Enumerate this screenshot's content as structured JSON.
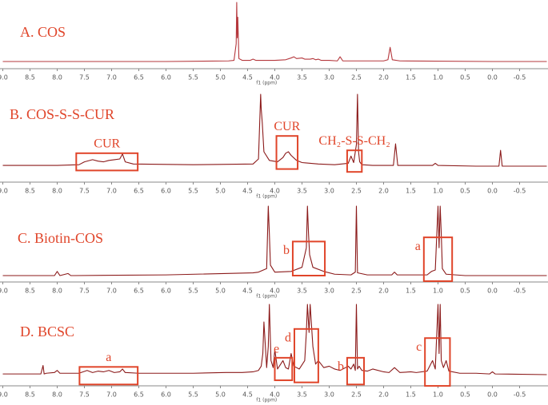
{
  "chart_data": [
    {
      "type": "line",
      "title": "A. COS",
      "xlabel": "f1 (ppm)",
      "color": "#b5383d",
      "xlim": [
        9,
        -1
      ],
      "ylim": [
        0,
        100
      ],
      "xticks": [
        {
          "value": 9,
          "label": "9.0"
        },
        8.5,
        {
          "value": 8,
          "label": "8.0"
        },
        7.5,
        {
          "value": 7,
          "label": "7.0"
        },
        6.5,
        {
          "value": 6,
          "label": "6.0"
        },
        5.5,
        {
          "value": 5,
          "label": "5.0"
        },
        4.5,
        {
          "value": 4,
          "label": "4.0"
        },
        3.5,
        {
          "value": 3,
          "label": "3.0"
        },
        2.5,
        {
          "value": 2,
          "label": "2.0"
        },
        1.5,
        {
          "value": 1,
          "label": "1.0"
        },
        0.5,
        {
          "value": 0,
          "label": "0.0"
        },
        -0.5
      ],
      "x": [
        9,
        8.2,
        6,
        4.85,
        4.75,
        4.71,
        4.7,
        4.69,
        4.68,
        4.66,
        4.6,
        4.45,
        4.4,
        4.35,
        4.0,
        3.8,
        3.7,
        3.65,
        3.6,
        3.5,
        3.45,
        3.35,
        3.3,
        3.25,
        3.2,
        3.15,
        3.0,
        2.85,
        2.8,
        2.75,
        2.0,
        1.92,
        1.88,
        1.84,
        1.7,
        0,
        -1
      ],
      "values": [
        0,
        0,
        0,
        1,
        2,
        30,
        100,
        40,
        75,
        5,
        2,
        2,
        4,
        2,
        2,
        3,
        6,
        8,
        5,
        6,
        4,
        4,
        5,
        3,
        4,
        2,
        2,
        1,
        8,
        1,
        1,
        3,
        24,
        3,
        1,
        0,
        0
      ],
      "annotations": []
    },
    {
      "type": "line",
      "title": "B. COS-S-S-CUR",
      "xlabel": "f1 (ppm)",
      "color": "#8b1a1a",
      "xlim": [
        9,
        -1
      ],
      "ylim": [
        0,
        100
      ],
      "xticks": [
        {
          "value": 9,
          "label": "9.0"
        },
        8.5,
        {
          "value": 8,
          "label": "8.0"
        },
        7.5,
        {
          "value": 7,
          "label": "7.0"
        },
        6.5,
        {
          "value": 6,
          "label": "6.0"
        },
        5.5,
        {
          "value": 5,
          "label": "5.0"
        },
        4.5,
        {
          "value": 4,
          "label": "4.0"
        },
        3.5,
        {
          "value": 3,
          "label": "3.0"
        },
        2.5,
        {
          "value": 2,
          "label": "2.0"
        },
        1.5,
        {
          "value": 1,
          "label": "1.0"
        },
        0.5,
        {
          "value": 0,
          "label": "0.0"
        },
        -0.5
      ],
      "x": [
        9,
        8.0,
        7.6,
        7.5,
        7.35,
        7.25,
        7.15,
        7.05,
        6.95,
        6.85,
        6.8,
        6.75,
        6.6,
        5.5,
        4.4,
        4.3,
        4.26,
        4.25,
        4.23,
        4.2,
        4.1,
        3.95,
        3.85,
        3.8,
        3.75,
        3.7,
        3.6,
        3.5,
        3.2,
        2.9,
        2.65,
        2.6,
        2.55,
        2.5,
        2.48,
        2.46,
        2.44,
        2.4,
        2.2,
        1.82,
        1.78,
        1.74,
        1.1,
        1.05,
        1.0,
        0.3,
        -0.12,
        -0.15,
        -0.18,
        -1
      ],
      "values": [
        1,
        1,
        2,
        6,
        9,
        7,
        6,
        8,
        9,
        10,
        17,
        6,
        3,
        2,
        3,
        10,
        100,
        80,
        60,
        20,
        8,
        6,
        12,
        18,
        20,
        15,
        8,
        5,
        3,
        2,
        4,
        14,
        5,
        30,
        100,
        20,
        6,
        2,
        1,
        1,
        31,
        1,
        1,
        4,
        1,
        0,
        0,
        22,
        0,
        0
      ],
      "annotations": [
        {
          "label": "CUR",
          "x": [
            7.65,
            6.52
          ],
          "y": [
            -6,
            18
          ]
        },
        {
          "label": "CUR",
          "x": [
            3.97,
            3.58
          ],
          "y": [
            -4,
            42
          ]
        },
        {
          "label": "CH₂-S-S-CH₂",
          "x": [
            2.67,
            2.4
          ],
          "y": [
            -8,
            22
          ]
        }
      ]
    },
    {
      "type": "line",
      "title": "C. Biotin-COS",
      "xlabel": "f1 (ppm)",
      "color": "#8b1a1a",
      "xlim": [
        9,
        -1
      ],
      "ylim": [
        0,
        100
      ],
      "xticks": [
        {
          "value": 9,
          "label": "9.0"
        },
        8.5,
        {
          "value": 8,
          "label": "8.0"
        },
        7.5,
        {
          "value": 7,
          "label": "7.0"
        },
        6.5,
        {
          "value": 6,
          "label": "6.0"
        },
        5.5,
        {
          "value": 5,
          "label": "5.0"
        },
        4.5,
        {
          "value": 4,
          "label": "4.0"
        },
        3.5,
        {
          "value": 3,
          "label": "3.0"
        },
        2.5,
        {
          "value": 2,
          "label": "2.0"
        },
        1.5,
        {
          "value": 1,
          "label": "1.0"
        },
        0.5,
        {
          "value": 0,
          "label": "0.0"
        },
        -0.5
      ],
      "x": [
        9,
        8.05,
        8.0,
        7.95,
        7.8,
        7.75,
        7.7,
        6,
        4.4,
        4.3,
        4.15,
        4.12,
        4.1,
        4.08,
        4.0,
        3.7,
        3.5,
        3.42,
        3.4,
        3.38,
        3.36,
        3.3,
        3.1,
        2.9,
        2.6,
        2.52,
        2.5,
        2.48,
        2.3,
        1.85,
        1.8,
        1.75,
        1.2,
        1.12,
        1.05,
        1.0,
        0.98,
        0.96,
        0.94,
        0.92,
        0.85,
        0.5,
        -1
      ],
      "values": [
        0,
        0,
        6,
        0,
        3,
        0,
        0,
        1,
        4,
        5,
        10,
        100,
        60,
        15,
        5,
        6,
        12,
        40,
        100,
        60,
        30,
        12,
        6,
        2,
        1,
        5,
        100,
        4,
        1,
        1,
        5,
        1,
        1,
        6,
        8,
        100,
        40,
        100,
        60,
        10,
        2,
        0,
        0
      ],
      "annotations": [
        {
          "label": "b",
          "x": [
            3.67,
            3.08
          ],
          "y": [
            0,
            49
          ]
        },
        {
          "label": "a",
          "x": [
            1.26,
            0.74
          ],
          "y": [
            -8,
            55
          ]
        }
      ]
    },
    {
      "type": "line",
      "title": "D. BCSC",
      "xlabel": "f1 (ppm)",
      "color": "#8b1a1a",
      "xlim": [
        9,
        -1
      ],
      "ylim": [
        0,
        100
      ],
      "xticks": [
        {
          "value": 9,
          "label": "9.0"
        },
        8.5,
        {
          "value": 8,
          "label": "8.0"
        },
        7.5,
        {
          "value": 7,
          "label": "7.0"
        },
        6.5,
        {
          "value": 6,
          "label": "6.0"
        },
        5.5,
        {
          "value": 5,
          "label": "5.0"
        },
        4.5,
        {
          "value": 4,
          "label": "4.0"
        },
        3.5,
        {
          "value": 3,
          "label": "3.0"
        },
        2.5,
        {
          "value": 2,
          "label": "2.0"
        },
        1.5,
        {
          "value": 1,
          "label": "1.0"
        },
        0.5,
        {
          "value": 0,
          "label": "0.0"
        },
        -0.5
      ],
      "x": [
        9,
        8.3,
        8.26,
        8.24,
        8.2,
        8.05,
        8.0,
        7.95,
        7.6,
        7.45,
        7.35,
        7.25,
        7.15,
        7.05,
        6.95,
        6.85,
        6.8,
        6.75,
        6.5,
        5.5,
        4.9,
        4.6,
        4.4,
        4.3,
        4.25,
        4.22,
        4.2,
        4.15,
        4.12,
        4.1,
        4.07,
        4.03,
        4.0,
        3.95,
        3.85,
        3.8,
        3.75,
        3.7,
        3.65,
        3.55,
        3.45,
        3.42,
        3.4,
        3.37,
        3.35,
        3.3,
        3.25,
        3.2,
        3.1,
        3.0,
        2.9,
        2.8,
        2.65,
        2.6,
        2.55,
        2.52,
        2.5,
        2.48,
        2.45,
        2.4,
        2.3,
        2.2,
        2.0,
        1.9,
        1.8,
        1.7,
        1.5,
        1.4,
        1.2,
        1.1,
        1.05,
        1.0,
        0.98,
        0.96,
        0.94,
        0.9,
        0.85,
        0.8,
        0.6,
        0.3,
        0.05,
        0.0,
        -0.05,
        -1
      ],
      "values": [
        1,
        1,
        13,
        1,
        2,
        3,
        6,
        2,
        2,
        6,
        3,
        5,
        4,
        6,
        3,
        4,
        8,
        3,
        2,
        2,
        3,
        3,
        4,
        6,
        12,
        30,
        75,
        10,
        40,
        100,
        20,
        10,
        35,
        8,
        20,
        10,
        8,
        30,
        12,
        8,
        20,
        60,
        100,
        60,
        100,
        40,
        15,
        20,
        10,
        12,
        8,
        6,
        12,
        8,
        15,
        6,
        100,
        8,
        12,
        6,
        5,
        8,
        4,
        3,
        10,
        3,
        4,
        3,
        5,
        20,
        8,
        100,
        30,
        100,
        20,
        10,
        20,
        5,
        2,
        2,
        1,
        4,
        1,
        0
      ],
      "annotations": [
        {
          "label": "a",
          "x": [
            7.59,
            6.52
          ],
          "y": [
            -14,
            11
          ]
        },
        {
          "label": "e",
          "x": [
            4.0,
            3.68
          ],
          "y": [
            -8,
            24
          ]
        },
        {
          "label": "d",
          "x": [
            3.64,
            3.2
          ],
          "y": [
            -11,
            65
          ]
        },
        {
          "label": "b",
          "x": [
            2.67,
            2.36
          ],
          "y": [
            -14,
            24
          ]
        },
        {
          "label": "c",
          "x": [
            1.24,
            0.78
          ],
          "y": [
            -16,
            52
          ]
        }
      ]
    }
  ]
}
